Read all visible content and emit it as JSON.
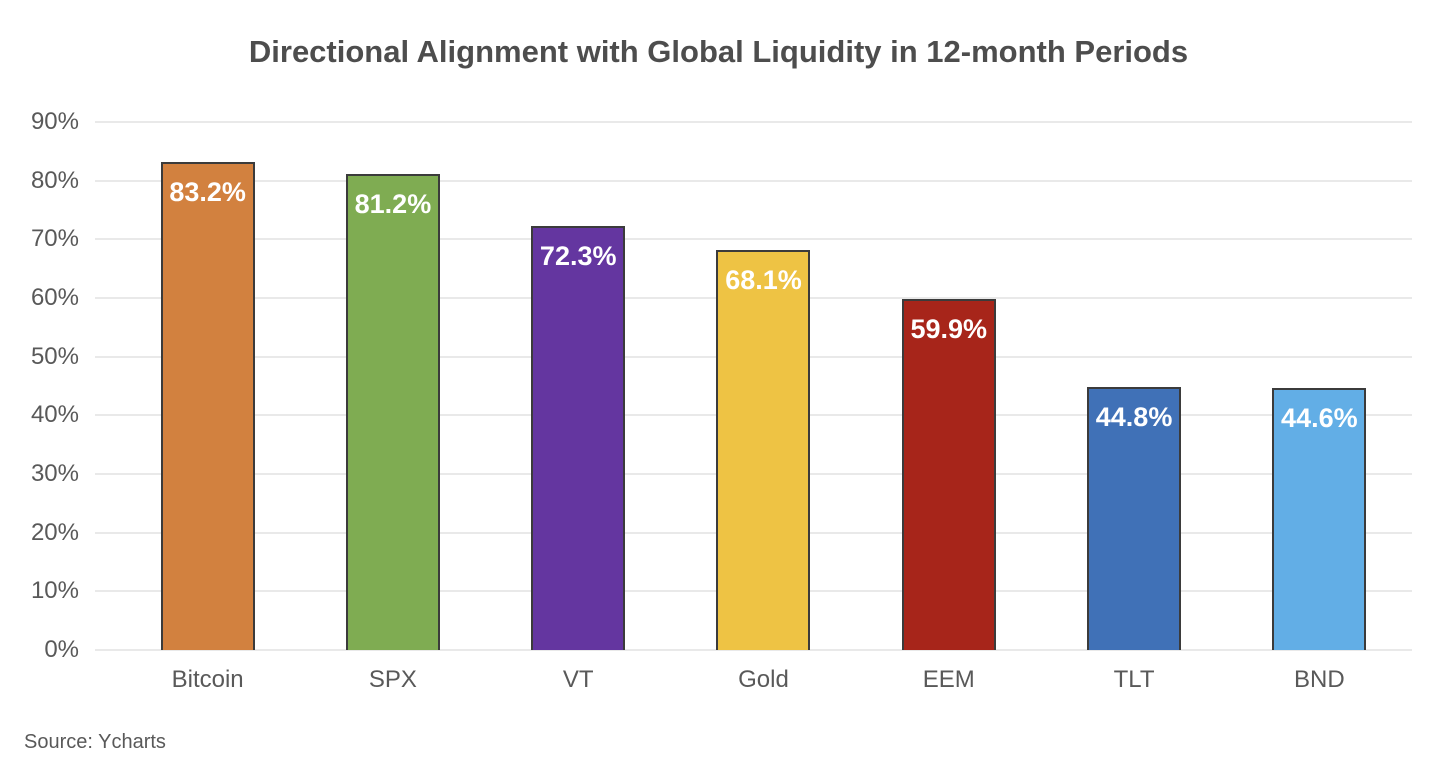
{
  "page": {
    "background": "#ffffff"
  },
  "chart_data": {
    "type": "bar",
    "title": "Directional Alignment with Global Liquidity in 12-month Periods",
    "categories": [
      "Bitcoin",
      "SPX",
      "VT",
      "Gold",
      "EEM",
      "TLT",
      "BND"
    ],
    "values": [
      83.2,
      81.2,
      72.3,
      68.1,
      59.9,
      44.8,
      44.6
    ],
    "value_labels": [
      "83.2%",
      "81.2%",
      "72.3%",
      "68.1%",
      "59.9%",
      "44.8%",
      "44.6%"
    ],
    "bar_colors": [
      "#d2813f",
      "#7fac52",
      "#6436a0",
      "#eec344",
      "#a7251a",
      "#4071b7",
      "#62aee6"
    ],
    "bar_border_color": "#3b3b3b",
    "value_label_color": "#ffffff",
    "xlabel": "",
    "ylabel": "",
    "ylim": [
      0,
      90
    ],
    "ytick_step": 10,
    "ytick_labels": [
      "0%",
      "10%",
      "20%",
      "30%",
      "40%",
      "50%",
      "60%",
      "70%",
      "80%",
      "90%"
    ],
    "grid": "horizontal",
    "gridline_color": "#e9e9e9",
    "axis_text_color": "#595959",
    "legend": "none",
    "source": "Source: Ycharts"
  }
}
